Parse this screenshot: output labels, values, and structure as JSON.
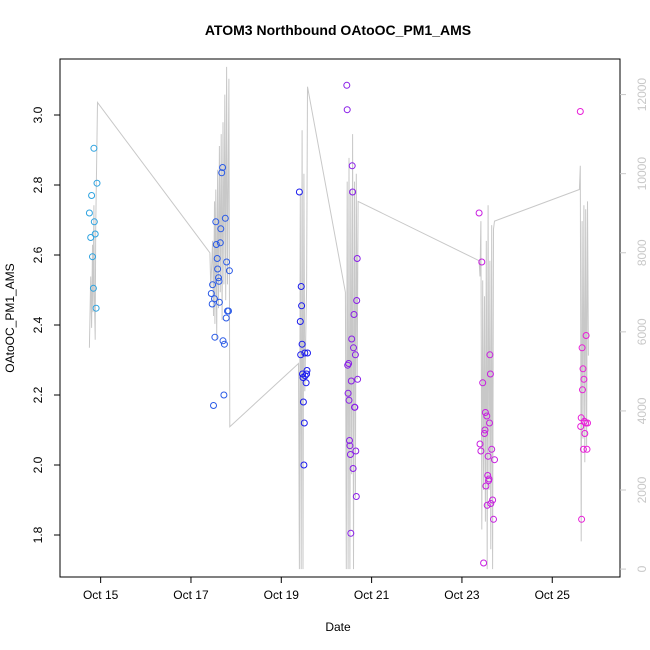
{
  "chart_data": {
    "type": "scatter",
    "title": "ATOM3 Northbound OAtoOC_PM1_AMS",
    "xlabel": "Date",
    "ylabel": "OAtoOC_PM1_AMS",
    "x_ticks": [
      {
        "label": "Oct 15",
        "day": 15
      },
      {
        "label": "Oct 17",
        "day": 17
      },
      {
        "label": "Oct 19",
        "day": 19
      },
      {
        "label": "Oct 21",
        "day": 21
      },
      {
        "label": "Oct 23",
        "day": 23
      },
      {
        "label": "Oct 25",
        "day": 25
      }
    ],
    "xlim": [
      14.1,
      26.5
    ],
    "ylim": [
      1.68,
      3.16
    ],
    "y_ticks": [
      1.8,
      2.0,
      2.2,
      2.4,
      2.6,
      2.8,
      3.0
    ],
    "y2lim": [
      -200,
      12900
    ],
    "y2_ticks": [
      0,
      2000,
      4000,
      6000,
      8000,
      10000,
      12000
    ],
    "colors": {
      "line": "#c8c8c8",
      "axis": "#000000",
      "right_axis": "#c8c8c8",
      "series_start": "#2ea3e0",
      "series_mid": "#1a1aee",
      "series_end": "#e81ed8"
    },
    "points": [
      {
        "x": 14.75,
        "y": 2.72,
        "c": "#2ea3e0"
      },
      {
        "x": 14.78,
        "y": 2.65,
        "c": "#2ea3e0"
      },
      {
        "x": 14.8,
        "y": 2.77,
        "c": "#2ea3e0"
      },
      {
        "x": 14.82,
        "y": 2.595,
        "c": "#2ea3e0"
      },
      {
        "x": 14.84,
        "y": 2.505,
        "c": "#2ea3e0"
      },
      {
        "x": 14.85,
        "y": 2.905,
        "c": "#2ea3e0"
      },
      {
        "x": 14.86,
        "y": 2.695,
        "c": "#2ea3e0"
      },
      {
        "x": 14.88,
        "y": 2.66,
        "c": "#2ea3e0"
      },
      {
        "x": 14.9,
        "y": 2.448,
        "c": "#2ea3e0"
      },
      {
        "x": 14.92,
        "y": 2.805,
        "c": "#2ea3e0"
      },
      {
        "x": 17.45,
        "y": 2.49,
        "c": "#2a5ae6"
      },
      {
        "x": 17.47,
        "y": 2.46,
        "c": "#2a5ae6"
      },
      {
        "x": 17.48,
        "y": 2.515,
        "c": "#2a5ae6"
      },
      {
        "x": 17.5,
        "y": 2.17,
        "c": "#2a5ae6"
      },
      {
        "x": 17.52,
        "y": 2.475,
        "c": "#2a5ae6"
      },
      {
        "x": 17.53,
        "y": 2.365,
        "c": "#2a5ae6"
      },
      {
        "x": 17.55,
        "y": 2.695,
        "c": "#2a5ae6"
      },
      {
        "x": 17.56,
        "y": 2.63,
        "c": "#2a5ae6"
      },
      {
        "x": 17.58,
        "y": 2.59,
        "c": "#2a5ae6"
      },
      {
        "x": 17.59,
        "y": 2.56,
        "c": "#2a5ae6"
      },
      {
        "x": 17.61,
        "y": 2.535,
        "c": "#2a5ae6"
      },
      {
        "x": 17.62,
        "y": 2.525,
        "c": "#2a5ae6"
      },
      {
        "x": 17.63,
        "y": 2.465,
        "c": "#2a5ae6"
      },
      {
        "x": 17.65,
        "y": 2.635,
        "c": "#2a5ae6"
      },
      {
        "x": 17.66,
        "y": 2.675,
        "c": "#2a5ae6"
      },
      {
        "x": 17.68,
        "y": 2.835,
        "c": "#2a5ae6"
      },
      {
        "x": 17.7,
        "y": 2.85,
        "c": "#2a5ae6"
      },
      {
        "x": 17.71,
        "y": 2.355,
        "c": "#2a5ae6"
      },
      {
        "x": 17.73,
        "y": 2.2,
        "c": "#2a5ae6"
      },
      {
        "x": 17.74,
        "y": 2.345,
        "c": "#2a5ae6"
      },
      {
        "x": 17.76,
        "y": 2.705,
        "c": "#2a5ae6"
      },
      {
        "x": 17.78,
        "y": 2.42,
        "c": "#2a5ae6"
      },
      {
        "x": 17.79,
        "y": 2.58,
        "c": "#2a5ae6"
      },
      {
        "x": 17.81,
        "y": 2.44,
        "c": "#2a5ae6"
      },
      {
        "x": 17.83,
        "y": 2.44,
        "c": "#2a5ae6"
      },
      {
        "x": 17.85,
        "y": 2.555,
        "c": "#2a5ae6"
      },
      {
        "x": 19.4,
        "y": 2.78,
        "c": "#1a1aee"
      },
      {
        "x": 19.42,
        "y": 2.41,
        "c": "#1a1aee"
      },
      {
        "x": 19.43,
        "y": 2.315,
        "c": "#1a1aee"
      },
      {
        "x": 19.44,
        "y": 2.51,
        "c": "#1a1aee"
      },
      {
        "x": 19.45,
        "y": 2.455,
        "c": "#1a1aee"
      },
      {
        "x": 19.46,
        "y": 2.345,
        "c": "#1a1aee"
      },
      {
        "x": 19.47,
        "y": 2.26,
        "c": "#1a1aee"
      },
      {
        "x": 19.48,
        "y": 2.25,
        "c": "#1a1aee"
      },
      {
        "x": 19.49,
        "y": 2.18,
        "c": "#1a1aee"
      },
      {
        "x": 19.5,
        "y": 2.0,
        "c": "#1a1aee"
      },
      {
        "x": 19.51,
        "y": 2.12,
        "c": "#1a1aee"
      },
      {
        "x": 19.52,
        "y": 2.32,
        "c": "#1a1aee"
      },
      {
        "x": 19.53,
        "y": 2.255,
        "c": "#1a1aee"
      },
      {
        "x": 19.55,
        "y": 2.235,
        "c": "#1a1aee"
      },
      {
        "x": 19.56,
        "y": 2.26,
        "c": "#1a1aee"
      },
      {
        "x": 19.57,
        "y": 2.27,
        "c": "#1a1aee"
      },
      {
        "x": 19.58,
        "y": 2.32,
        "c": "#1a1aee"
      },
      {
        "x": 20.45,
        "y": 3.085,
        "c": "#8a1ee8"
      },
      {
        "x": 20.46,
        "y": 3.015,
        "c": "#8a1ee8"
      },
      {
        "x": 20.47,
        "y": 2.285,
        "c": "#8a1ee8"
      },
      {
        "x": 20.48,
        "y": 2.205,
        "c": "#8a1ee8"
      },
      {
        "x": 20.49,
        "y": 2.29,
        "c": "#8a1ee8"
      },
      {
        "x": 20.5,
        "y": 2.185,
        "c": "#8a1ee8"
      },
      {
        "x": 20.51,
        "y": 2.07,
        "c": "#8a1ee8"
      },
      {
        "x": 20.52,
        "y": 2.055,
        "c": "#8a1ee8"
      },
      {
        "x": 20.53,
        "y": 2.03,
        "c": "#8a1ee8"
      },
      {
        "x": 20.54,
        "y": 1.805,
        "c": "#8a1ee8"
      },
      {
        "x": 20.55,
        "y": 2.24,
        "c": "#8a1ee8"
      },
      {
        "x": 20.56,
        "y": 2.36,
        "c": "#8a1ee8"
      },
      {
        "x": 20.57,
        "y": 2.855,
        "c": "#8a1ee8"
      },
      {
        "x": 20.58,
        "y": 2.78,
        "c": "#8a1ee8"
      },
      {
        "x": 20.59,
        "y": 1.99,
        "c": "#8a1ee8"
      },
      {
        "x": 20.6,
        "y": 2.335,
        "c": "#8a1ee8"
      },
      {
        "x": 20.61,
        "y": 2.43,
        "c": "#8a1ee8"
      },
      {
        "x": 20.62,
        "y": 2.165,
        "c": "#8a1ee8"
      },
      {
        "x": 20.63,
        "y": 2.165,
        "c": "#8a1ee8"
      },
      {
        "x": 20.64,
        "y": 2.315,
        "c": "#8a1ee8"
      },
      {
        "x": 20.65,
        "y": 2.04,
        "c": "#8a1ee8"
      },
      {
        "x": 20.66,
        "y": 1.91,
        "c": "#8a1ee8"
      },
      {
        "x": 20.67,
        "y": 2.47,
        "c": "#8a1ee8"
      },
      {
        "x": 20.68,
        "y": 2.59,
        "c": "#8a1ee8"
      },
      {
        "x": 20.69,
        "y": 2.245,
        "c": "#8a1ee8"
      },
      {
        "x": 23.38,
        "y": 2.72,
        "c": "#c81ee0"
      },
      {
        "x": 23.4,
        "y": 2.06,
        "c": "#c81ee0"
      },
      {
        "x": 23.42,
        "y": 2.04,
        "c": "#c81ee0"
      },
      {
        "x": 23.44,
        "y": 2.58,
        "c": "#c81ee0"
      },
      {
        "x": 23.46,
        "y": 2.235,
        "c": "#c81ee0"
      },
      {
        "x": 23.48,
        "y": 1.72,
        "c": "#c81ee0"
      },
      {
        "x": 23.5,
        "y": 2.09,
        "c": "#c81ee0"
      },
      {
        "x": 23.51,
        "y": 2.1,
        "c": "#c81ee0"
      },
      {
        "x": 23.52,
        "y": 2.15,
        "c": "#c81ee0"
      },
      {
        "x": 23.53,
        "y": 1.94,
        "c": "#c81ee0"
      },
      {
        "x": 23.55,
        "y": 2.14,
        "c": "#c81ee0"
      },
      {
        "x": 23.56,
        "y": 1.885,
        "c": "#c81ee0"
      },
      {
        "x": 23.57,
        "y": 1.97,
        "c": "#c81ee0"
      },
      {
        "x": 23.58,
        "y": 2.025,
        "c": "#c81ee0"
      },
      {
        "x": 23.59,
        "y": 1.955,
        "c": "#c81ee0"
      },
      {
        "x": 23.6,
        "y": 1.96,
        "c": "#c81ee0"
      },
      {
        "x": 23.61,
        "y": 2.12,
        "c": "#c81ee0"
      },
      {
        "x": 23.62,
        "y": 2.315,
        "c": "#c81ee0"
      },
      {
        "x": 23.63,
        "y": 2.26,
        "c": "#c81ee0"
      },
      {
        "x": 23.64,
        "y": 1.89,
        "c": "#c81ee0"
      },
      {
        "x": 23.66,
        "y": 2.045,
        "c": "#c81ee0"
      },
      {
        "x": 23.68,
        "y": 1.9,
        "c": "#c81ee0"
      },
      {
        "x": 23.7,
        "y": 1.845,
        "c": "#c81ee0"
      },
      {
        "x": 23.72,
        "y": 2.015,
        "c": "#c81ee0"
      },
      {
        "x": 25.62,
        "y": 3.01,
        "c": "#e81ed8"
      },
      {
        "x": 25.63,
        "y": 2.11,
        "c": "#e81ed8"
      },
      {
        "x": 25.64,
        "y": 2.135,
        "c": "#e81ed8"
      },
      {
        "x": 25.65,
        "y": 1.845,
        "c": "#e81ed8"
      },
      {
        "x": 25.66,
        "y": 2.335,
        "c": "#e81ed8"
      },
      {
        "x": 25.67,
        "y": 2.215,
        "c": "#e81ed8"
      },
      {
        "x": 25.68,
        "y": 2.275,
        "c": "#e81ed8"
      },
      {
        "x": 25.69,
        "y": 2.045,
        "c": "#e81ed8"
      },
      {
        "x": 25.7,
        "y": 2.245,
        "c": "#e81ed8"
      },
      {
        "x": 25.71,
        "y": 2.125,
        "c": "#e81ed8"
      },
      {
        "x": 25.72,
        "y": 2.09,
        "c": "#e81ed8"
      },
      {
        "x": 25.74,
        "y": 2.12,
        "c": "#e81ed8"
      },
      {
        "x": 25.75,
        "y": 2.37,
        "c": "#e81ed8"
      },
      {
        "x": 25.77,
        "y": 2.045,
        "c": "#e81ed8"
      },
      {
        "x": 25.78,
        "y": 2.12,
        "c": "#e81ed8"
      }
    ],
    "line_y2": [
      [
        14.75,
        5600
      ],
      [
        14.78,
        7400
      ],
      [
        14.8,
        6100
      ],
      [
        14.82,
        8200
      ],
      [
        14.83,
        6500
      ],
      [
        14.85,
        9200
      ],
      [
        14.86,
        7000
      ],
      [
        14.88,
        5800
      ],
      [
        14.89,
        8600
      ],
      [
        14.91,
        10200
      ],
      [
        14.93,
        11800
      ],
      [
        17.42,
        8000
      ],
      [
        17.44,
        7100
      ],
      [
        17.46,
        7700
      ],
      [
        17.48,
        8300
      ],
      [
        17.5,
        6400
      ],
      [
        17.52,
        9300
      ],
      [
        17.53,
        6200
      ],
      [
        17.55,
        9600
      ],
      [
        17.57,
        5800
      ],
      [
        17.59,
        10100
      ],
      [
        17.61,
        6600
      ],
      [
        17.63,
        10700
      ],
      [
        17.65,
        7000
      ],
      [
        17.67,
        11000
      ],
      [
        17.69,
        6300
      ],
      [
        17.71,
        11300
      ],
      [
        17.73,
        7200
      ],
      [
        17.75,
        12000
      ],
      [
        17.77,
        6800
      ],
      [
        17.79,
        12700
      ],
      [
        17.81,
        7200
      ],
      [
        17.84,
        12400
      ],
      [
        17.86,
        3600
      ],
      [
        19.38,
        5200
      ],
      [
        19.4,
        0
      ],
      [
        19.42,
        9500
      ],
      [
        19.44,
        0
      ],
      [
        19.46,
        11100
      ],
      [
        19.48,
        0
      ],
      [
        19.5,
        10000
      ],
      [
        19.52,
        4500
      ],
      [
        19.56,
        7100
      ],
      [
        19.58,
        12200
      ],
      [
        20.42,
        7000
      ],
      [
        20.44,
        0
      ],
      [
        20.46,
        9800
      ],
      [
        20.48,
        0
      ],
      [
        20.5,
        10400
      ],
      [
        20.52,
        0
      ],
      [
        20.54,
        9600
      ],
      [
        20.56,
        2400
      ],
      [
        20.58,
        11000
      ],
      [
        20.6,
        0
      ],
      [
        20.62,
        9800
      ],
      [
        20.64,
        1800
      ],
      [
        20.66,
        10000
      ],
      [
        20.68,
        4800
      ],
      [
        20.7,
        9300
      ],
      [
        23.38,
        7800
      ],
      [
        23.4,
        7400
      ],
      [
        23.42,
        8800
      ],
      [
        23.44,
        1000
      ],
      [
        23.46,
        7300
      ],
      [
        23.48,
        2000
      ],
      [
        23.5,
        6900
      ],
      [
        23.52,
        1200
      ],
      [
        23.54,
        8300
      ],
      [
        23.56,
        0
      ],
      [
        23.58,
        9200
      ],
      [
        23.6,
        2000
      ],
      [
        23.62,
        7800
      ],
      [
        23.64,
        500
      ],
      [
        23.66,
        8700
      ],
      [
        23.68,
        0
      ],
      [
        23.7,
        8600
      ],
      [
        23.72,
        8800
      ],
      [
        25.6,
        9600
      ],
      [
        25.62,
        10200
      ],
      [
        25.64,
        700
      ],
      [
        25.66,
        8800
      ],
      [
        25.68,
        3300
      ],
      [
        25.7,
        9200
      ],
      [
        25.72,
        2700
      ],
      [
        25.74,
        9100
      ],
      [
        25.76,
        3100
      ],
      [
        25.78,
        9300
      ],
      [
        25.8,
        5400
      ]
    ]
  }
}
